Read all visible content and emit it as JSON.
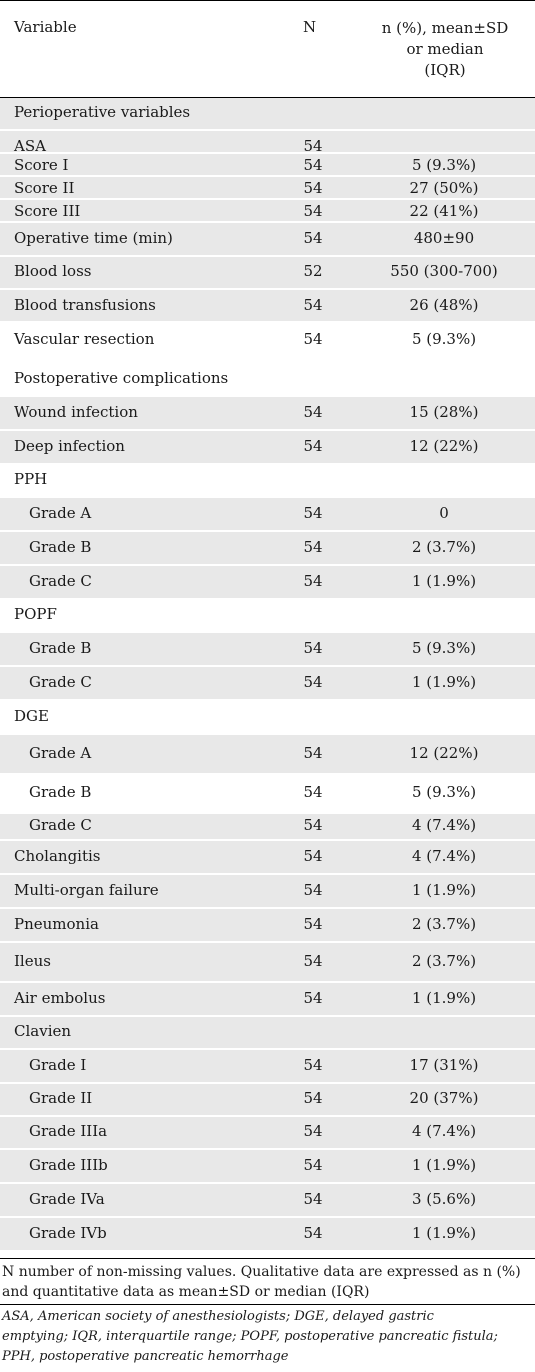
{
  "header": {
    "col_variable": "Variable",
    "col_n": "N",
    "col_value_lines": [
      "n (%), mean±SD",
      "or median",
      "(IQR)"
    ]
  },
  "colors": {
    "shaded_row": "#e8e8e8",
    "rule": "#000000"
  },
  "rows": [
    {
      "label": "Perioperative variables",
      "n": "",
      "value": "",
      "indent": false
    },
    {
      "label": "ASA",
      "n": "54",
      "value": "",
      "indent": false
    },
    {
      "label": "Score I",
      "n": "54",
      "value": "5 (9.3%)",
      "indent": false
    },
    {
      "label": "Score II",
      "n": "54",
      "value": "27 (50%)",
      "indent": false
    },
    {
      "label": "Score III",
      "n": "54",
      "value": "22 (41%)",
      "indent": false
    },
    {
      "label": "Operative time (min)",
      "n": "54",
      "value": "480±90",
      "indent": false
    },
    {
      "label": "Blood loss",
      "n": "52",
      "value": "550 (300-700)",
      "indent": false
    },
    {
      "label": "Blood transfusions",
      "n": "54",
      "value": "26 (48%)",
      "indent": false
    },
    {
      "label": "Vascular resection",
      "n": "54",
      "value": "5 (9.3%)",
      "indent": false
    },
    {
      "label": "Postoperative complications",
      "n": "",
      "value": "",
      "indent": false
    },
    {
      "label": "Wound infection",
      "n": "54",
      "value": "15 (28%)",
      "indent": false
    },
    {
      "label": "Deep infection",
      "n": "54",
      "value": "12 (22%)",
      "indent": false
    },
    {
      "label": "PPH",
      "n": "",
      "value": "",
      "indent": false
    },
    {
      "label": "Grade A",
      "n": "54",
      "value": "0",
      "indent": true
    },
    {
      "label": "Grade B",
      "n": "54",
      "value": "2 (3.7%)",
      "indent": true
    },
    {
      "label": "Grade C",
      "n": "54",
      "value": "1 (1.9%)",
      "indent": true
    },
    {
      "label": "POPF",
      "n": "",
      "value": "",
      "indent": false
    },
    {
      "label": "Grade B",
      "n": "54",
      "value": "5 (9.3%)",
      "indent": true
    },
    {
      "label": "Grade C",
      "n": "54",
      "value": "1 (1.9%)",
      "indent": true
    },
    {
      "label": "DGE",
      "n": "",
      "value": "",
      "indent": false
    },
    {
      "label": "Grade A",
      "n": "54",
      "value": "12 (22%)",
      "indent": true
    },
    {
      "label": "Grade B",
      "n": "54",
      "value": "5 (9.3%)",
      "indent": true
    },
    {
      "label": "Grade C",
      "n": "54",
      "value": "4 (7.4%)",
      "indent": true
    },
    {
      "label": "Cholangitis",
      "n": "54",
      "value": "4 (7.4%)",
      "indent": false
    },
    {
      "label": "Multi-organ failure",
      "n": "54",
      "value": "1 (1.9%)",
      "indent": false
    },
    {
      "label": "Pneumonia",
      "n": "54",
      "value": "2 (3.7%)",
      "indent": false
    },
    {
      "label": "Ileus",
      "n": "54",
      "value": "2 (3.7%)",
      "indent": false
    },
    {
      "label": "Air embolus",
      "n": "54",
      "value": "1 (1.9%)",
      "indent": false
    },
    {
      "label": "Clavien",
      "n": "",
      "value": "",
      "indent": false
    },
    {
      "label": "Grade I",
      "n": "54",
      "value": "17 (31%)",
      "indent": true
    },
    {
      "label": "Grade II",
      "n": "54",
      "value": "20 (37%)",
      "indent": true
    },
    {
      "label": "Grade IIIa",
      "n": "54",
      "value": "4 (7.4%)",
      "indent": true
    },
    {
      "label": "Grade IIIb",
      "n": "54",
      "value": "1 (1.9%)",
      "indent": true
    },
    {
      "label": "Grade IVa",
      "n": "54",
      "value": "3 (5.6%)",
      "indent": true
    },
    {
      "label": "Grade IVb",
      "n": "54",
      "value": "1 (1.9%)",
      "indent": true
    }
  ],
  "footnotes": {
    "note1_lines": [
      "N number of non-missing values. Qualitative data are expressed as n (%)",
      "and quantitative data as mean±SD or median (IQR)"
    ],
    "note2_lines": [
      "ASA, American society of anesthesiologists; DGE, delayed gastric",
      "emptying; IQR, interquartile range; POPF, postoperative pancreatic fistula;",
      "PPH, postoperative pancreatic hemorrhage"
    ]
  }
}
